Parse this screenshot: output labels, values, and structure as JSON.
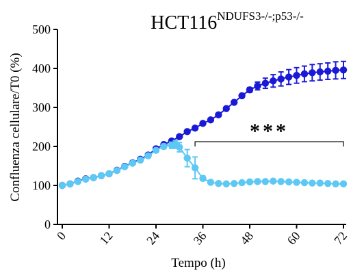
{
  "chart_data": {
    "type": "line",
    "title_base": "HCT116",
    "title_superscript": "NDUFS3-/-;p53-/-",
    "xlabel": "Tempo (h)",
    "ylabel": "Confluenza cellulare/T0 (%)",
    "xlim": [
      0,
      72
    ],
    "ylim": [
      0,
      500
    ],
    "x_ticks": [
      "0",
      "12",
      "24",
      "36",
      "48",
      "60",
      "72"
    ],
    "x_tick_values": [
      0,
      12,
      24,
      36,
      48,
      60,
      72
    ],
    "y_ticks": [
      "0",
      "100",
      "200",
      "300",
      "400",
      "500"
    ],
    "y_tick_values": [
      0,
      100,
      200,
      300,
      400,
      500
    ],
    "grid": false,
    "legend": "none",
    "annotation": {
      "text": "***",
      "bracket_x": [
        34,
        72
      ],
      "bracket_y": 212
    },
    "series": [
      {
        "color": "#1a1ad6",
        "x": [
          0,
          2,
          4,
          6,
          8,
          10,
          12,
          14,
          16,
          18,
          20,
          22,
          24,
          26,
          28,
          30,
          32,
          34,
          36,
          38,
          40,
          42,
          44,
          46,
          48,
          50,
          52,
          54,
          56,
          58,
          60,
          62,
          64,
          66,
          68,
          70,
          72
        ],
        "y": [
          100,
          104,
          111,
          117,
          120,
          125,
          130,
          139,
          149,
          158,
          167,
          178,
          194,
          205,
          214,
          225,
          238,
          247,
          259,
          268,
          281,
          297,
          313,
          330,
          345,
          355,
          362,
          368,
          373,
          378,
          382,
          386,
          389,
          391,
          393,
          395,
          396
        ],
        "err": [
          0,
          0,
          0,
          0,
          0,
          0,
          0,
          0,
          0,
          0,
          0,
          0,
          0,
          0,
          0,
          0,
          0,
          0,
          0,
          0,
          0,
          0,
          0,
          3,
          6,
          10,
          13,
          16,
          18,
          19,
          20,
          20,
          21,
          21,
          21,
          22,
          22
        ]
      },
      {
        "color": "#5cc8f3",
        "x": [
          0,
          2,
          4,
          6,
          8,
          10,
          12,
          14,
          16,
          18,
          20,
          22,
          24,
          26,
          28,
          29,
          30,
          32,
          34,
          36,
          38,
          40,
          42,
          44,
          46,
          48,
          50,
          52,
          54,
          56,
          58,
          60,
          62,
          64,
          66,
          68,
          70,
          72
        ],
        "y": [
          100,
          104,
          110,
          116,
          120,
          125,
          130,
          138,
          148,
          157,
          165,
          176,
          190,
          200,
          203,
          205,
          198,
          170,
          145,
          118,
          108,
          105,
          104,
          105,
          107,
          109,
          110,
          110,
          111,
          110,
          109,
          108,
          107,
          106,
          106,
          105,
          104,
          104
        ],
        "err": [
          0,
          0,
          0,
          0,
          0,
          0,
          0,
          0,
          0,
          0,
          0,
          0,
          4,
          6,
          8,
          10,
          12,
          22,
          28,
          6,
          3,
          2,
          2,
          2,
          2,
          2,
          2,
          2,
          2,
          2,
          2,
          2,
          2,
          2,
          2,
          2,
          2,
          2
        ]
      }
    ]
  }
}
